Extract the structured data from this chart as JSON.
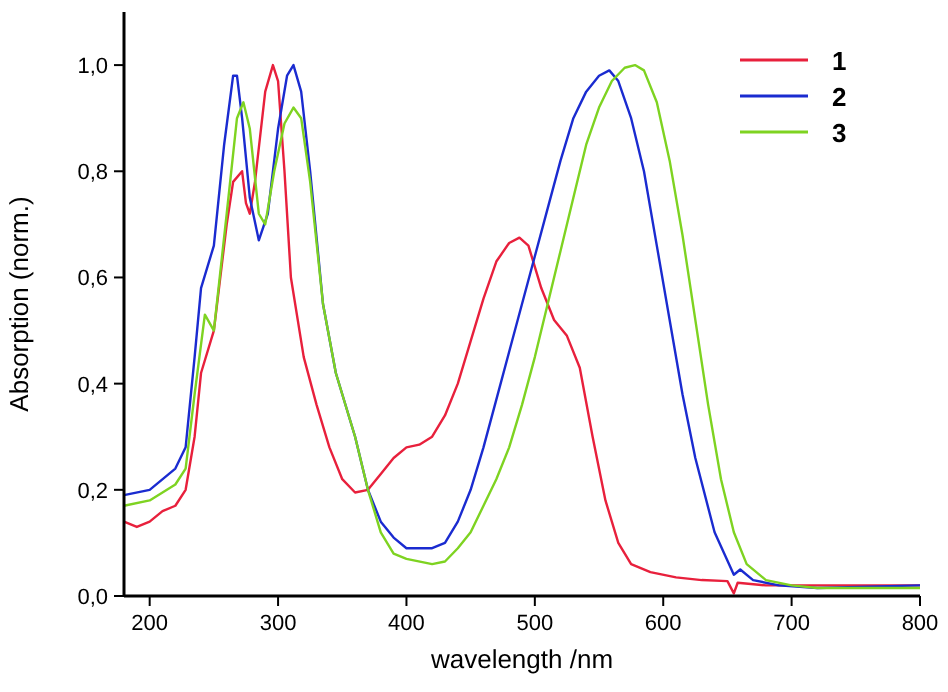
{
  "chart_data": {
    "type": "line",
    "xlabel": "wavelength /nm",
    "ylabel": "Absorption (norm.)",
    "xlim": [
      180,
      800
    ],
    "ylim": [
      0,
      1.1
    ],
    "xticks": [
      200,
      300,
      400,
      500,
      600,
      700,
      800
    ],
    "yticks": [
      {
        "value": 0,
        "label": "0,0"
      },
      {
        "value": 0.2,
        "label": "0,2"
      },
      {
        "value": 0.4,
        "label": "0,4"
      },
      {
        "value": 0.6,
        "label": "0,6"
      },
      {
        "value": 0.8,
        "label": "0,8"
      },
      {
        "value": 1,
        "label": "1,0"
      }
    ],
    "grid": false,
    "legend": "top right",
    "marker": "none",
    "line_style": "solid",
    "series": [
      {
        "name": "1",
        "color": "#e8203c",
        "x": [
          180,
          190,
          200,
          210,
          220,
          228,
          235,
          240,
          250,
          260,
          265,
          272,
          275,
          278,
          282,
          290,
          296,
          300,
          305,
          310,
          320,
          330,
          340,
          350,
          360,
          370,
          380,
          390,
          400,
          410,
          420,
          430,
          440,
          450,
          460,
          470,
          480,
          488,
          495,
          505,
          515,
          525,
          535,
          545,
          555,
          565,
          575,
          590,
          610,
          630,
          650,
          655,
          658,
          680,
          720,
          800
        ],
        "values": [
          0.14,
          0.13,
          0.14,
          0.16,
          0.17,
          0.2,
          0.3,
          0.42,
          0.5,
          0.7,
          0.78,
          0.8,
          0.74,
          0.72,
          0.78,
          0.95,
          1.0,
          0.97,
          0.8,
          0.6,
          0.45,
          0.36,
          0.28,
          0.22,
          0.195,
          0.2,
          0.23,
          0.26,
          0.28,
          0.285,
          0.3,
          0.34,
          0.4,
          0.48,
          0.56,
          0.63,
          0.665,
          0.675,
          0.66,
          0.58,
          0.52,
          0.49,
          0.43,
          0.3,
          0.18,
          0.1,
          0.06,
          0.045,
          0.035,
          0.03,
          0.028,
          0.005,
          0.025,
          0.02,
          0.02,
          0.02
        ]
      },
      {
        "name": "2",
        "color": "#1a2bd0",
        "x": [
          180,
          200,
          220,
          228,
          235,
          240,
          250,
          258,
          265,
          268,
          272,
          278,
          285,
          292,
          300,
          307,
          312,
          318,
          325,
          335,
          345,
          360,
          370,
          380,
          390,
          400,
          420,
          430,
          440,
          450,
          460,
          470,
          480,
          490,
          500,
          510,
          520,
          530,
          540,
          550,
          558,
          565,
          575,
          585,
          595,
          605,
          615,
          625,
          640,
          655,
          660,
          670,
          690,
          720,
          800
        ],
        "values": [
          0.19,
          0.2,
          0.24,
          0.28,
          0.45,
          0.58,
          0.66,
          0.85,
          0.98,
          0.98,
          0.9,
          0.75,
          0.67,
          0.72,
          0.88,
          0.98,
          1.0,
          0.95,
          0.8,
          0.55,
          0.42,
          0.3,
          0.2,
          0.14,
          0.11,
          0.09,
          0.09,
          0.1,
          0.14,
          0.2,
          0.28,
          0.37,
          0.46,
          0.55,
          0.64,
          0.73,
          0.82,
          0.9,
          0.95,
          0.98,
          0.99,
          0.97,
          0.9,
          0.8,
          0.66,
          0.52,
          0.38,
          0.26,
          0.12,
          0.04,
          0.05,
          0.03,
          0.02,
          0.015,
          0.02
        ]
      },
      {
        "name": "3",
        "color": "#7ed321",
        "x": [
          180,
          200,
          220,
          228,
          235,
          243,
          250,
          260,
          268,
          273,
          278,
          285,
          290,
          297,
          305,
          312,
          318,
          325,
          335,
          345,
          360,
          370,
          380,
          390,
          400,
          420,
          430,
          440,
          450,
          460,
          470,
          480,
          490,
          500,
          510,
          520,
          530,
          540,
          550,
          560,
          570,
          578,
          585,
          595,
          605,
          615,
          625,
          635,
          645,
          655,
          665,
          680,
          700,
          720,
          800
        ],
        "values": [
          0.17,
          0.18,
          0.21,
          0.24,
          0.38,
          0.53,
          0.5,
          0.72,
          0.9,
          0.93,
          0.88,
          0.72,
          0.7,
          0.8,
          0.89,
          0.92,
          0.9,
          0.78,
          0.55,
          0.42,
          0.3,
          0.2,
          0.12,
          0.08,
          0.07,
          0.06,
          0.065,
          0.09,
          0.12,
          0.17,
          0.22,
          0.28,
          0.36,
          0.45,
          0.55,
          0.65,
          0.75,
          0.85,
          0.92,
          0.97,
          0.995,
          1.0,
          0.99,
          0.93,
          0.82,
          0.68,
          0.52,
          0.36,
          0.22,
          0.12,
          0.06,
          0.03,
          0.02,
          0.015,
          0.015
        ]
      }
    ]
  }
}
